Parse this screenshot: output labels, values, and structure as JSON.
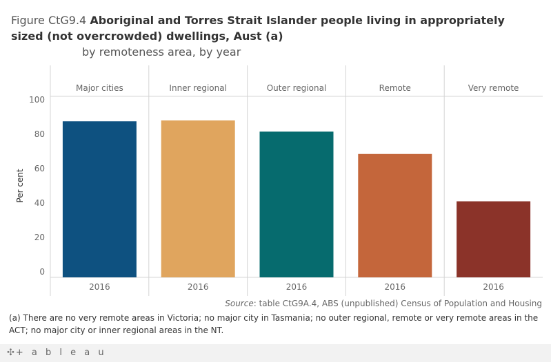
{
  "title": {
    "lead": "Figure CtG9.4 ",
    "main": "Aboriginal and Torres Strait Islander people living in appropriately sized (not overcrowded) dwellings, Aust (a)",
    "subtitle": "by remoteness area, by year"
  },
  "chart_data": {
    "type": "bar",
    "ylabel": "Per cent",
    "ylim": [
      0,
      100
    ],
    "yticks": [
      0,
      20,
      40,
      60,
      80,
      100
    ],
    "grid": false,
    "panels": [
      {
        "header": "Major cities",
        "category": "2016",
        "value": 87.5,
        "color": "#0e5180"
      },
      {
        "header": "Inner regional",
        "category": "2016",
        "value": 88,
        "color": "#e0a55e"
      },
      {
        "header": "Outer regional",
        "category": "2016",
        "value": 81.5,
        "color": "#066b6e"
      },
      {
        "header": "Remote",
        "category": "2016",
        "value": 68.5,
        "color": "#c4663b"
      },
      {
        "header": "Very remote",
        "category": "2016",
        "value": 41,
        "color": "#8b3329"
      }
    ]
  },
  "source": {
    "label": "Source",
    "text": ": table CtG9A.4, ABS (unpublished) Census of Population and Housing"
  },
  "footnote": "(a) There are no very remote areas in Victoria; no major city in Tasmania; no outer regional, remote or very remote areas in the ACT; no major city or inner regional areas in the NT.",
  "footer": {
    "logo_text": "+ a b l e a u",
    "logo_mark": "✣"
  }
}
